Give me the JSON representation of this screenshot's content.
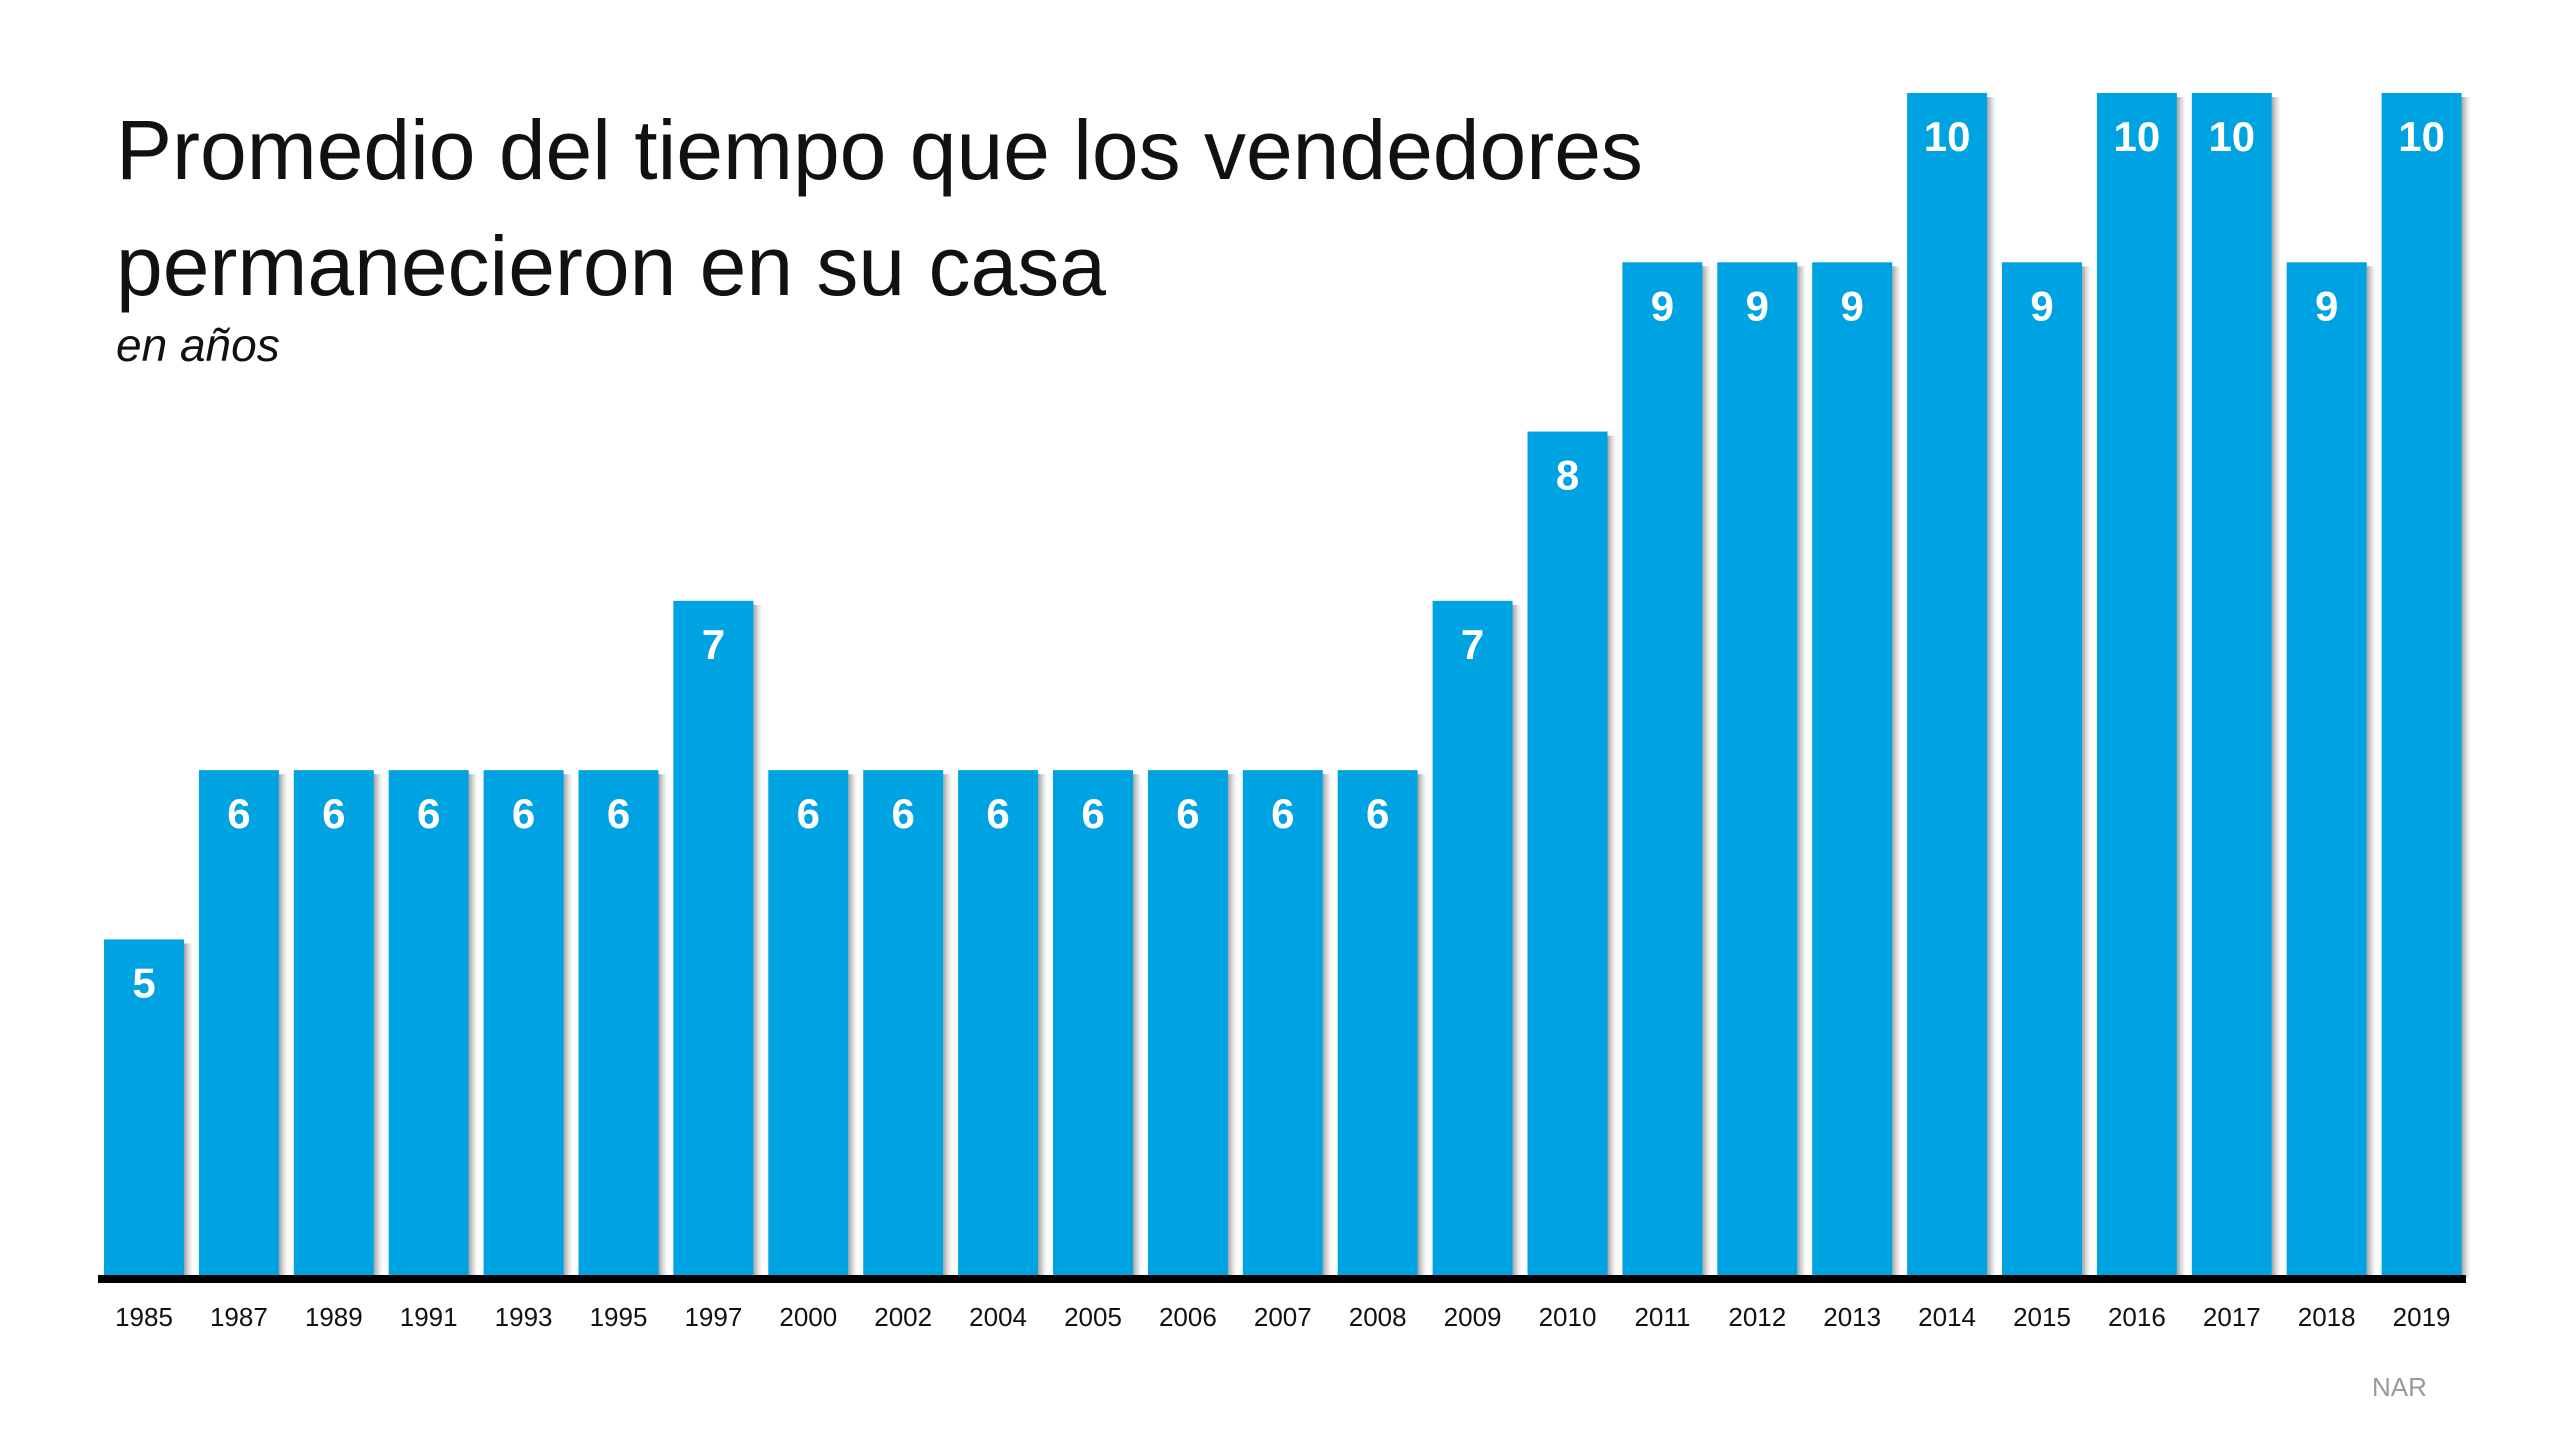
{
  "chart_data": {
    "type": "bar",
    "title": "Promedio del tiempo que los vendedores permanecieron en su casa",
    "title_lines": [
      "Promedio del tiempo que los vendedores",
      "permanecieron en su casa"
    ],
    "subtitle": "en años",
    "source": "NAR",
    "categories": [
      "1985",
      "1987",
      "1989",
      "1991",
      "1993",
      "1995",
      "1997",
      "2000",
      "2002",
      "2004",
      "2005",
      "2006",
      "2007",
      "2008",
      "2009",
      "2010",
      "2011",
      "2012",
      "2013",
      "2014",
      "2015",
      "2016",
      "2017",
      "2018",
      "2019"
    ],
    "values": [
      5,
      6,
      6,
      6,
      6,
      6,
      7,
      6,
      6,
      6,
      6,
      6,
      6,
      6,
      7,
      8,
      9,
      9,
      9,
      10,
      9,
      10,
      10,
      9,
      10
    ],
    "xlabel": "",
    "ylabel": "",
    "ylim": [
      3,
      10
    ],
    "grid": false,
    "data_labels": true,
    "colors": {
      "bar": "#00A3E2",
      "axis": "#000000",
      "label": "#FFFFFF"
    }
  }
}
